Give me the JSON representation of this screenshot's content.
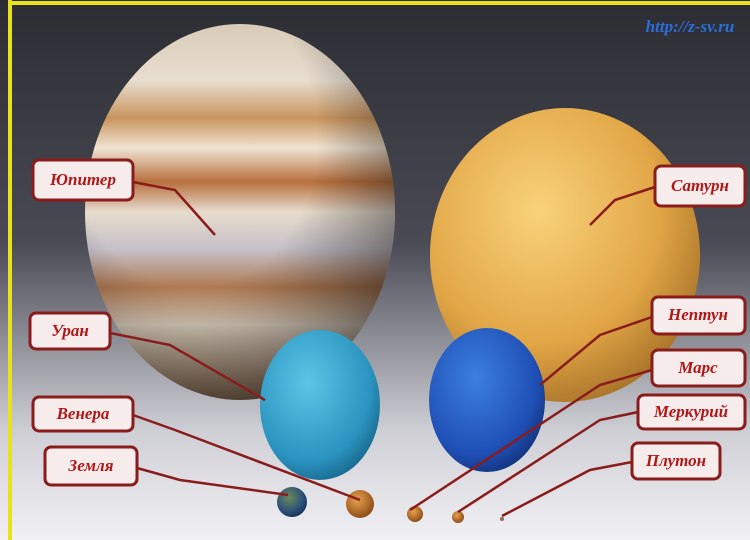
{
  "watermark": "http://z-sv.ru",
  "labels": [
    "Юпитер",
    "Сатурн",
    "Уран",
    "Нептун",
    "Марс",
    "Венера",
    "Меркурий",
    "Земля",
    "Плутон"
  ]
}
